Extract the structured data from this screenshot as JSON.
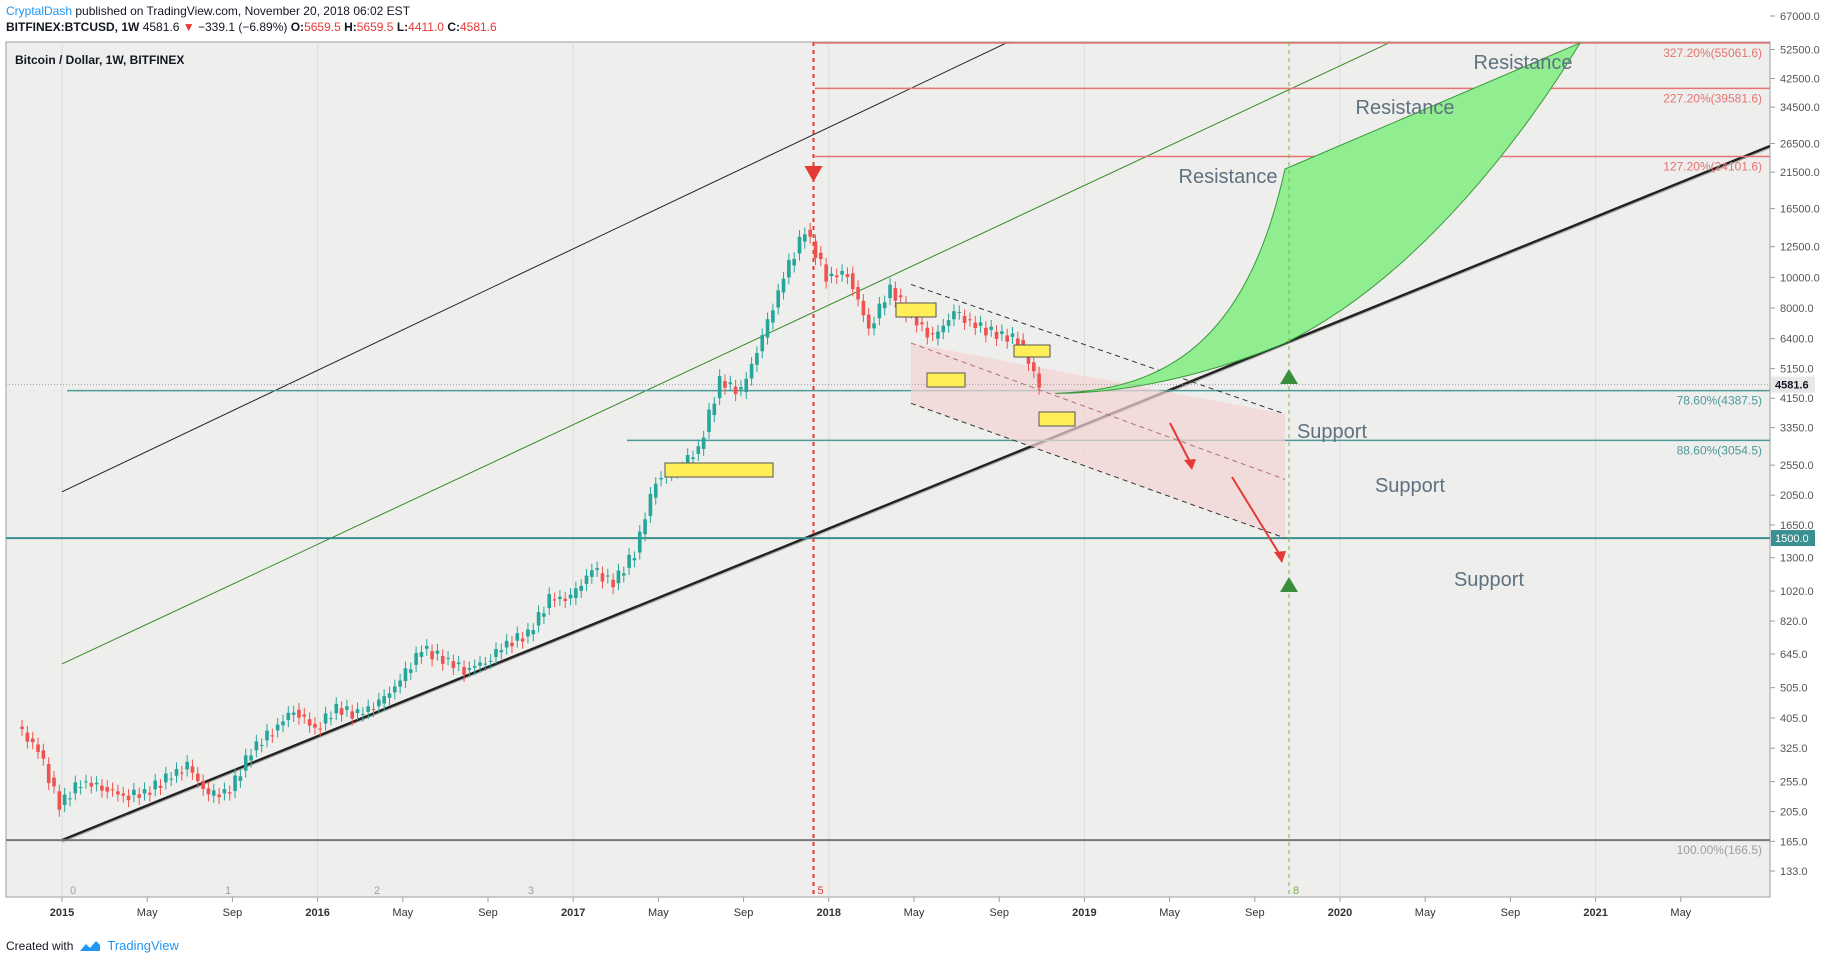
{
  "header": {
    "author": "CryptalDash",
    "published": " published on TradingView.com, November 20, 2018 06:02 EST",
    "symbol": "BITFINEX:BTCUSD, 1W",
    "last": "4581.6",
    "change": "−339.1 (−6.89%)",
    "open_label": "O:",
    "open": "5659.5",
    "high_label": "H:",
    "high": "5659.5",
    "low_label": "L:",
    "low": "4411.0",
    "close_label": "C:",
    "close": "4581.6"
  },
  "footer": {
    "created": "Created with",
    "brand": "TradingView"
  },
  "chart_data": {
    "type": "candlestick",
    "title": "Bitcoin / Dollar, 1W, BITFINEX",
    "y_scale": "log",
    "ylim": [
      133,
      67000
    ],
    "y_ticks": [
      "67000.0",
      "52500.0",
      "42500.0",
      "34500.0",
      "26500.0",
      "21500.0",
      "16500.0",
      "12500.0",
      "10000.0",
      "8000.0",
      "6400.0",
      "5150.0",
      "4150.0",
      "3350.0",
      "2550.0",
      "2050.0",
      "1650.0",
      "1300.0",
      "1020.0",
      "820.0",
      "645.0",
      "505.0",
      "405.0",
      "325.0",
      "255.0",
      "205.0",
      "165.0",
      "133.0"
    ],
    "x_ticks": [
      "2015",
      "May",
      "Sep",
      "2016",
      "May",
      "Sep",
      "2017",
      "May",
      "Sep",
      "2018",
      "May",
      "Sep",
      "2019",
      "May",
      "Sep",
      "2020",
      "May",
      "Sep",
      "2021",
      "May"
    ],
    "x_range": [
      "2014-11",
      "2021-07"
    ],
    "price_series": [
      {
        "date": "2014-11",
        "value": 380
      },
      {
        "date": "2014-12",
        "value": 320
      },
      {
        "date": "2015-01",
        "value": 215
      },
      {
        "date": "2015-02",
        "value": 255
      },
      {
        "date": "2015-03",
        "value": 245
      },
      {
        "date": "2015-04",
        "value": 230
      },
      {
        "date": "2015-05",
        "value": 235
      },
      {
        "date": "2015-06",
        "value": 260
      },
      {
        "date": "2015-07",
        "value": 285
      },
      {
        "date": "2015-08",
        "value": 230
      },
      {
        "date": "2015-09",
        "value": 238
      },
      {
        "date": "2015-10",
        "value": 320
      },
      {
        "date": "2015-11",
        "value": 370
      },
      {
        "date": "2015-12",
        "value": 430
      },
      {
        "date": "2016-01",
        "value": 375
      },
      {
        "date": "2016-02",
        "value": 435
      },
      {
        "date": "2016-03",
        "value": 415
      },
      {
        "date": "2016-04",
        "value": 450
      },
      {
        "date": "2016-05",
        "value": 530
      },
      {
        "date": "2016-06",
        "value": 670
      },
      {
        "date": "2016-07",
        "value": 625
      },
      {
        "date": "2016-08",
        "value": 575
      },
      {
        "date": "2016-09",
        "value": 610
      },
      {
        "date": "2016-10",
        "value": 700
      },
      {
        "date": "2016-11",
        "value": 745
      },
      {
        "date": "2016-12",
        "value": 960
      },
      {
        "date": "2017-01",
        "value": 970
      },
      {
        "date": "2017-02",
        "value": 1190
      },
      {
        "date": "2017-03",
        "value": 1080
      },
      {
        "date": "2017-04",
        "value": 1350
      },
      {
        "date": "2017-05",
        "value": 2300
      },
      {
        "date": "2017-06",
        "value": 2480
      },
      {
        "date": "2017-07",
        "value": 2870
      },
      {
        "date": "2017-08",
        "value": 4700
      },
      {
        "date": "2017-09",
        "value": 4340
      },
      {
        "date": "2017-10",
        "value": 6450
      },
      {
        "date": "2017-11",
        "value": 10000
      },
      {
        "date": "2017-12",
        "value": 14150
      },
      {
        "date": "2018-01",
        "value": 10100
      },
      {
        "date": "2018-02",
        "value": 10300
      },
      {
        "date": "2018-03",
        "value": 6900
      },
      {
        "date": "2018-04",
        "value": 9250
      },
      {
        "date": "2018-05",
        "value": 7500
      },
      {
        "date": "2018-06",
        "value": 6400
      },
      {
        "date": "2018-07",
        "value": 7730
      },
      {
        "date": "2018-08",
        "value": 7030
      },
      {
        "date": "2018-09",
        "value": 6630
      },
      {
        "date": "2018-10",
        "value": 6340
      },
      {
        "date": "2018-11",
        "value": 4581.6
      }
    ],
    "annotations": {
      "fib_levels": [
        {
          "label": "327.20%(55061.6)",
          "value": 55061.6,
          "color": "#e57373"
        },
        {
          "label": "227.20%(39581.6)",
          "value": 39581.6,
          "color": "#e57373"
        },
        {
          "label": "127.20%(24101.6)",
          "value": 24101.6,
          "color": "#e57373"
        },
        {
          "label": "78.60%(4387.5)",
          "value": 4387.5,
          "color": "#4e9a9a"
        },
        {
          "label": "88.60%(3054.5)",
          "value": 3054.5,
          "color": "#4e9a9a"
        },
        {
          "label": "100.00%(166.5)",
          "value": 166.5,
          "color": "#9e9e9e"
        }
      ],
      "zones": [
        {
          "label": "Resistance",
          "value": 55061.6
        },
        {
          "label": "Resistance",
          "value": 39581.6
        },
        {
          "label": "Resistance",
          "value": 24101.6
        },
        {
          "label": "Support",
          "value": 4387.5
        },
        {
          "label": "Support",
          "value": 3054.5
        },
        {
          "label": "Support",
          "value": 1500.0
        }
      ],
      "price_label": "4581.6",
      "line_label": "1500.0",
      "cycle_markers": [
        "0",
        "1",
        "2",
        "3",
        "5",
        "8"
      ]
    }
  }
}
